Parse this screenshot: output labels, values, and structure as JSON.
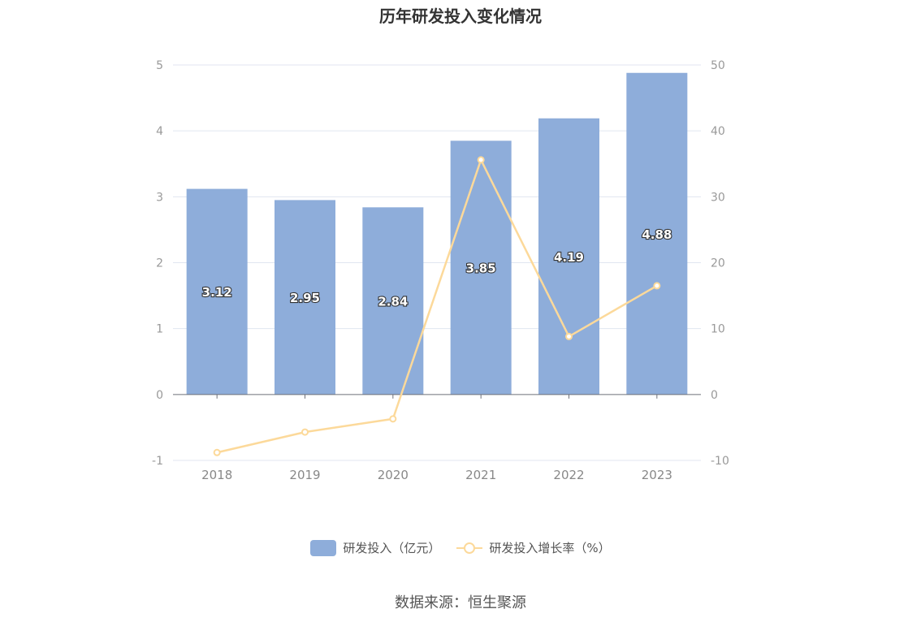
{
  "chart_data": {
    "type": "bar",
    "title": "历年研发投入变化情况",
    "categories": [
      "2018",
      "2019",
      "2020",
      "2021",
      "2022",
      "2023"
    ],
    "series": [
      {
        "name": "研发投入（亿元）",
        "type": "bar",
        "axis": "left",
        "values": [
          3.12,
          2.95,
          2.84,
          3.85,
          4.19,
          4.88
        ],
        "color": "#8eadda"
      },
      {
        "name": "研发投入增长率（%）",
        "type": "line",
        "axis": "right",
        "values": [
          -8.8,
          -5.7,
          -3.7,
          35.6,
          8.8,
          16.5
        ],
        "color": "#fcd99a"
      }
    ],
    "y_left": {
      "ticks": [
        "-1",
        "0",
        "1",
        "2",
        "3",
        "4",
        "5"
      ],
      "ylim": [
        -1,
        5
      ]
    },
    "y_right": {
      "ticks": [
        "-10",
        "0",
        "10",
        "20",
        "30",
        "40",
        "50"
      ],
      "ylim": [
        -10,
        50
      ]
    },
    "grid": true,
    "legend_position": "bottom"
  },
  "source": "数据来源：恒生聚源"
}
